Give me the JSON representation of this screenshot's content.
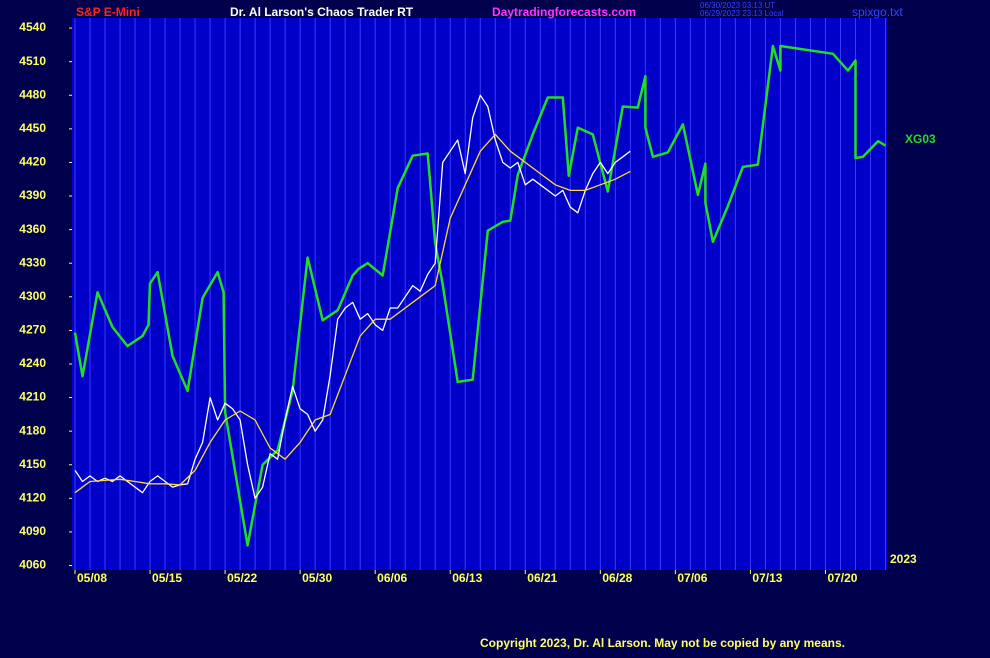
{
  "chart_data": {
    "type": "line",
    "symbol": "S&P E-Mini",
    "title": "Dr. Al Larson's Chaos Trader RT",
    "website": "Daytradingforecasts.com",
    "timestamps": [
      "06/30/2023 03:13 UT",
      "06/29/2023 23:13 Local"
    ],
    "filename": "spixgo.txt",
    "year": "2023",
    "copyright": "Copyright 2023, Dr. Al Larson. May not be copied by any means.",
    "xlim": [
      -0.2,
      54.1
    ],
    "ylim": [
      4056,
      4549
    ],
    "yticks": [
      4060,
      4090,
      4120,
      4150,
      4180,
      4210,
      4240,
      4270,
      4300,
      4330,
      4360,
      4390,
      4420,
      4450,
      4480,
      4510,
      4540
    ],
    "xticks": [
      {
        "value": 0,
        "label": "05/08"
      },
      {
        "value": 5,
        "label": "05/15"
      },
      {
        "value": 10,
        "label": "05/22"
      },
      {
        "value": 15,
        "label": "05/30"
      },
      {
        "value": 20,
        "label": "06/06"
      },
      {
        "value": 25,
        "label": "06/13"
      },
      {
        "value": 30,
        "label": "06/21"
      },
      {
        "value": 35,
        "label": "06/28"
      },
      {
        "value": 40,
        "label": "07/06"
      },
      {
        "value": 45,
        "label": "07/13"
      },
      {
        "value": 50,
        "label": "07/20"
      }
    ],
    "x_minor_ticks": [
      0,
      1,
      2,
      3,
      4,
      5,
      6,
      7,
      8,
      9,
      10,
      11,
      12,
      13,
      14,
      15,
      16,
      17,
      18,
      19,
      20,
      21,
      22,
      23,
      24,
      25,
      26,
      27,
      28,
      29,
      30,
      31,
      32,
      33,
      34,
      35,
      36,
      37,
      38,
      39,
      40,
      41,
      42,
      43,
      44,
      45,
      46,
      47,
      48,
      49,
      50,
      51,
      52,
      53,
      54
    ],
    "grid": true,
    "series": [
      {
        "name": "XG03",
        "color": "#22dd22",
        "x": [
          0,
          0.5,
          1.5,
          2.5,
          3.5,
          4.5,
          4.9,
          5,
          5.5,
          6.5,
          7.5,
          8.5,
          9.5,
          9.9,
          10,
          11.5,
          12.5,
          13.5,
          14.5,
          15.5,
          16.5,
          17.5,
          18.5,
          18.9,
          19.5,
          20.5,
          21.5,
          22.5,
          23.5,
          24,
          24.5,
          25.5,
          26.5,
          27.5,
          28.5,
          29,
          29.5,
          30.5,
          31.5,
          32.5,
          32.9,
          33.5,
          34.5,
          35.5,
          36.5,
          37.5,
          38,
          38,
          38.5,
          39.5,
          40.5,
          41.5,
          42,
          42,
          42.5,
          43.5,
          44.5,
          45.5,
          46.5,
          47,
          47,
          50.5,
          51.5,
          52,
          52,
          52.5,
          53.5,
          54
        ],
        "values": [
          4268,
          4229,
          4304,
          4273,
          4256,
          4265,
          4275,
          4312,
          4322,
          4247,
          4216,
          4299,
          4322,
          4304,
          4197,
          4078,
          4150,
          4163,
          4216,
          4335,
          4279,
          4288,
          4319,
          4325,
          4330,
          4319,
          4397,
          4426,
          4428,
          4348,
          4311,
          4224,
          4226,
          4359,
          4367,
          4368,
          4409,
          4445,
          4478,
          4478,
          4408,
          4451,
          4445,
          4394,
          4470,
          4469,
          4497,
          4451,
          4425,
          4429,
          4454,
          4391,
          4419,
          4384,
          4349,
          4381,
          4416,
          4418,
          4524,
          4502,
          4524,
          4517,
          4502,
          4511,
          4424,
          4425,
          4439,
          4435
        ]
      },
      {
        "color": "#ffffff",
        "x": [
          0,
          0.5,
          1,
          1.5,
          2,
          2.5,
          3,
          3.5,
          4,
          4.5,
          5,
          5.5,
          6,
          6.5,
          7,
          7.5,
          8,
          8.5,
          9,
          9.5,
          10,
          10.5,
          11,
          11.5,
          12,
          12.5,
          13,
          13.5,
          14,
          14.5,
          15,
          15.5,
          16,
          16.5,
          17,
          17.5,
          18,
          18.5,
          19,
          19.5,
          20,
          20.5,
          21,
          21.5,
          22,
          22.5,
          23,
          23.5,
          24,
          24.5,
          25,
          25.5,
          26,
          26.5,
          27,
          27.5,
          28,
          28.5,
          29,
          29.5,
          30,
          30.5,
          31,
          31.5,
          32,
          32.5,
          33,
          33.5,
          34,
          34.5,
          35,
          35.5,
          36,
          36.5,
          37
        ],
        "values": [
          4145,
          4135,
          4140,
          4135,
          4138,
          4135,
          4140,
          4135,
          4130,
          4125,
          4135,
          4140,
          4135,
          4130,
          4132,
          4133,
          4155,
          4170,
          4210,
          4190,
          4205,
          4200,
          4190,
          4150,
          4120,
          4130,
          4160,
          4155,
          4190,
          4220,
          4200,
          4195,
          4180,
          4190,
          4230,
          4280,
          4290,
          4295,
          4280,
          4285,
          4275,
          4270,
          4290,
          4290,
          4300,
          4310,
          4305,
          4320,
          4330,
          4420,
          4430,
          4440,
          4410,
          4460,
          4480,
          4470,
          4440,
          4420,
          4415,
          4420,
          4400,
          4405,
          4400,
          4395,
          4390,
          4395,
          4380,
          4375,
          4395,
          4410,
          4420,
          4410,
          4420,
          4425,
          4430
        ]
      },
      {
        "color": "#ffdd33",
        "x": [
          0,
          1,
          2,
          3,
          4,
          5,
          6,
          7,
          8,
          9,
          10,
          11,
          12,
          13,
          14,
          15,
          16,
          17,
          18,
          19,
          20,
          21,
          22,
          23,
          24,
          25,
          26,
          27,
          28,
          29,
          30,
          31,
          32,
          33,
          34,
          35,
          36,
          37
        ],
        "values": [
          4125,
          4135,
          4136,
          4137,
          4135,
          4133,
          4133,
          4132,
          4145,
          4170,
          4190,
          4198,
          4190,
          4165,
          4155,
          4170,
          4190,
          4195,
          4230,
          4265,
          4280,
          4280,
          4290,
          4300,
          4310,
          4370,
          4400,
          4430,
          4445,
          4430,
          4420,
          4410,
          4400,
          4395,
          4395,
          4400,
          4405,
          4412
        ]
      }
    ]
  }
}
